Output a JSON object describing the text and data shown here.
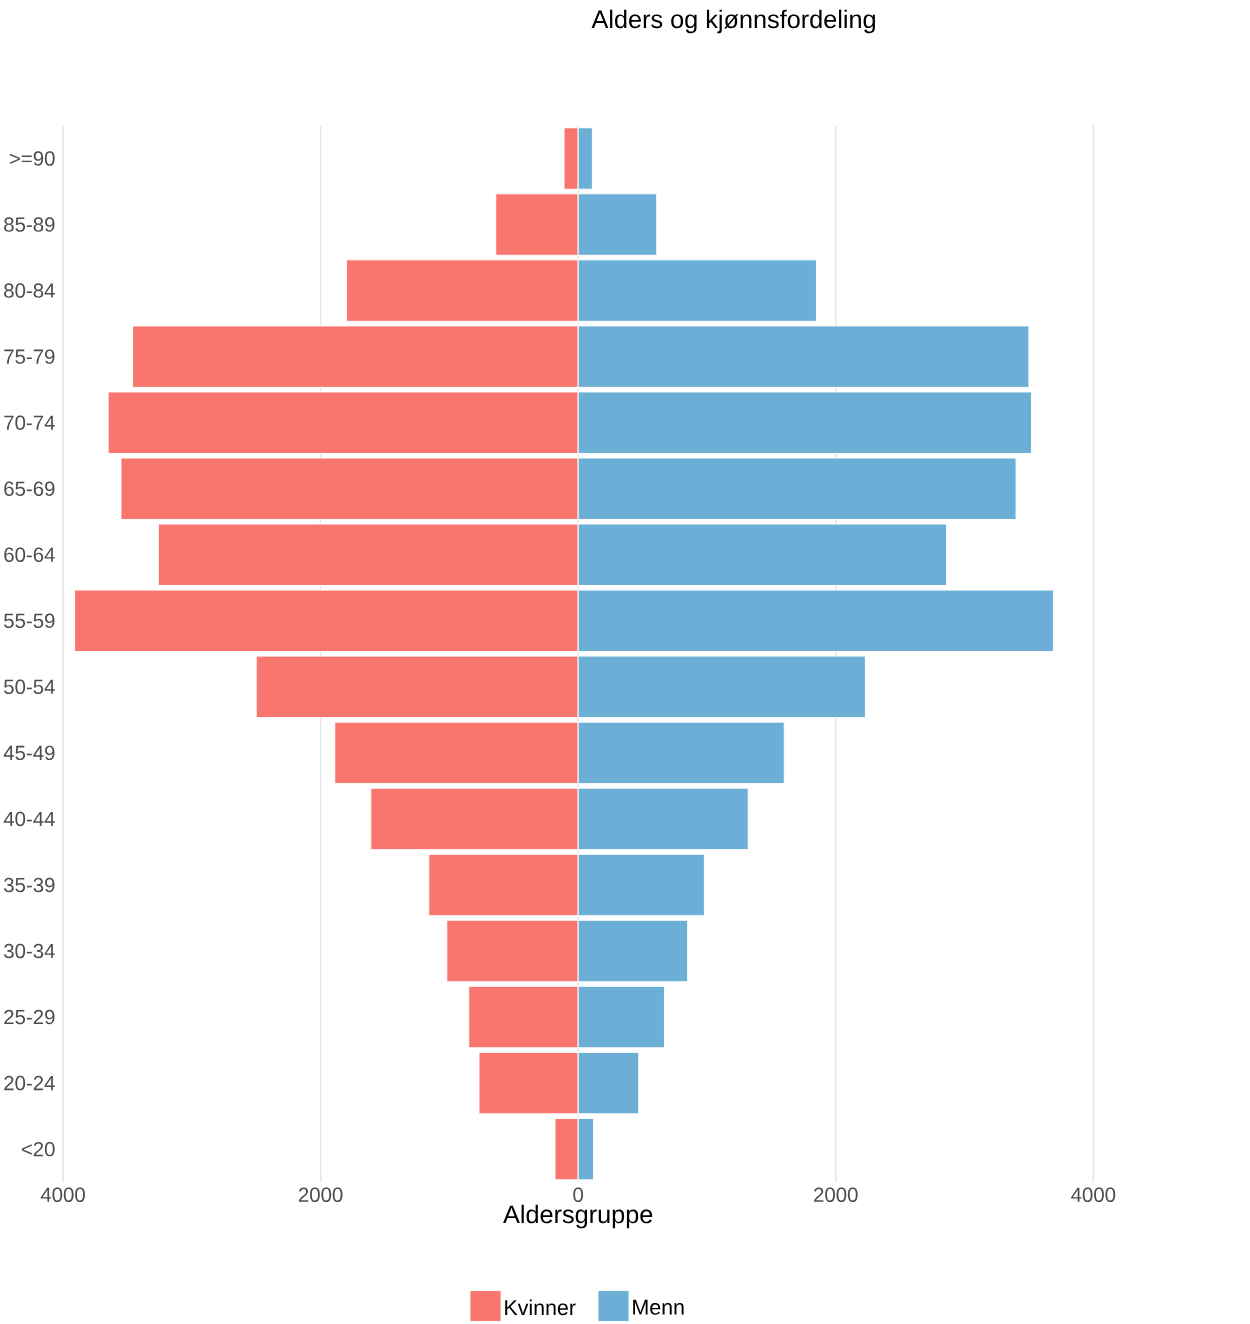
{
  "chart_data": {
    "type": "bar",
    "orientation": "horizontal",
    "title": "Alders og kjønnsfordeling",
    "xlabel": "Aldersgruppe",
    "categories": [
      ">=90",
      "85-89",
      "80-84",
      "75-79",
      "70-74",
      "65-69",
      "60-64",
      "55-59",
      "50-54",
      "45-49",
      "40-44",
      "35-39",
      "30-34",
      "25-29",
      "20-24",
      "<20"
    ],
    "series": [
      {
        "name": "Kvinner",
        "color": "#f8766d",
        "values": [
          -110,
          -640,
          -1800,
          -3460,
          -3650,
          -3550,
          -3260,
          -3910,
          -2500,
          -1890,
          -1610,
          -1160,
          -1020,
          -850,
          -770,
          -180
        ]
      },
      {
        "name": "Menn",
        "color": "#6baed6",
        "values": [
          110,
          610,
          1850,
          3500,
          3520,
          3400,
          2860,
          3690,
          2230,
          1600,
          1320,
          980,
          850,
          670,
          470,
          120
        ]
      }
    ],
    "xlim": [
      -4000,
      4000
    ],
    "stacked": true,
    "xticks": [
      {
        "value": -4000,
        "label": "4000"
      },
      {
        "value": -2000,
        "label": "2000"
      },
      0,
      2000,
      4000
    ],
    "grid": "x",
    "legend": "bottom"
  }
}
